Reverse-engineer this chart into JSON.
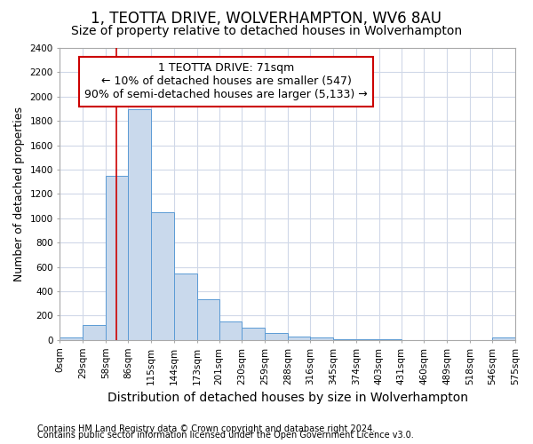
{
  "title": "1, TEOTTA DRIVE, WOLVERHAMPTON, WV6 8AU",
  "subtitle": "Size of property relative to detached houses in Wolverhampton",
  "xlabel": "Distribution of detached houses by size in Wolverhampton",
  "ylabel": "Number of detached properties",
  "footnote1": "Contains HM Land Registry data © Crown copyright and database right 2024.",
  "footnote2": "Contains public sector information licensed under the Open Government Licence v3.0.",
  "annotation_line1": "1 TEOTTA DRIVE: 71sqm",
  "annotation_line2": "← 10% of detached houses are smaller (547)",
  "annotation_line3": "90% of semi-detached houses are larger (5,133) →",
  "bar_color": "#c9d9ec",
  "bar_edge_color": "#5b9bd5",
  "red_line_x": 71,
  "bin_edges": [
    0,
    29,
    58,
    86,
    115,
    144,
    173,
    201,
    230,
    259,
    288,
    316,
    345,
    374,
    403,
    431,
    460,
    489,
    518,
    546,
    575
  ],
  "bar_heights": [
    20,
    125,
    1350,
    1900,
    1050,
    550,
    335,
    155,
    105,
    60,
    30,
    20,
    10,
    5,
    3,
    2,
    1,
    0,
    0,
    20
  ],
  "ylim": [
    0,
    2400
  ],
  "yticks": [
    0,
    200,
    400,
    600,
    800,
    1000,
    1200,
    1400,
    1600,
    1800,
    2000,
    2200,
    2400
  ],
  "grid_color": "#d0d8e8",
  "background_color": "#ffffff",
  "title_fontsize": 12,
  "subtitle_fontsize": 10,
  "xlabel_fontsize": 10,
  "ylabel_fontsize": 9,
  "tick_fontsize": 7.5,
  "footnote_fontsize": 7,
  "annotation_fontsize": 9,
  "annotation_box_color": "#ffffff",
  "annotation_box_edge": "#cc0000",
  "red_line_color": "#cc0000"
}
